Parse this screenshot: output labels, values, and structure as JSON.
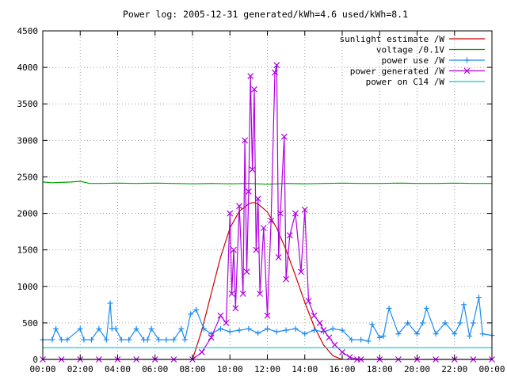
{
  "chart_data": {
    "type": "line",
    "title": "Power log: 2005-12-31 generated/kWh=4.6 used/kWh=8.1",
    "xlabel": "",
    "ylabel": "",
    "x_ticks": [
      "00:00",
      "02:00",
      "04:00",
      "06:00",
      "08:00",
      "10:00",
      "12:00",
      "14:00",
      "16:00",
      "18:00",
      "20:00",
      "22:00",
      "00:00"
    ],
    "y_ticks": [
      "0",
      "500",
      "1000",
      "1500",
      "2000",
      "2500",
      "3000",
      "3500",
      "4000",
      "4500"
    ],
    "xlim_hours": [
      0,
      24
    ],
    "ylim": [
      0,
      4500
    ],
    "grid": true,
    "legend_position": "top-right",
    "series": [
      {
        "name": "sunlight estimate /W",
        "color": "#cc0000",
        "marker": "none",
        "x": [
          8.0,
          8.5,
          9.0,
          9.5,
          10.0,
          10.5,
          11.0,
          11.25,
          11.5,
          12.0,
          12.5,
          13.0,
          13.5,
          14.0,
          14.5,
          15.0,
          15.5,
          16.0
        ],
        "y": [
          0,
          400,
          900,
          1400,
          1800,
          2030,
          2130,
          2150,
          2130,
          2020,
          1800,
          1500,
          1150,
          780,
          450,
          200,
          50,
          0
        ]
      },
      {
        "name": "voltage /0.1V",
        "color": "#00a000",
        "marker": "none",
        "x": [
          0.0,
          0.5,
          1.0,
          1.5,
          2.0,
          2.5,
          3.0,
          4.0,
          5.0,
          6.0,
          7.0,
          8.0,
          9.0,
          10.0,
          11.0,
          12.0,
          13.0,
          14.0,
          15.0,
          16.0,
          17.0,
          18.0,
          19.0,
          20.0,
          21.0,
          22.0,
          23.0,
          24.0
        ],
        "y": [
          2430,
          2420,
          2425,
          2430,
          2440,
          2410,
          2410,
          2415,
          2410,
          2415,
          2410,
          2405,
          2410,
          2405,
          2410,
          2400,
          2410,
          2405,
          2410,
          2415,
          2410,
          2410,
          2415,
          2410,
          2410,
          2415,
          2410,
          2410
        ]
      },
      {
        "name": "power use /W",
        "color": "#1e8cf0",
        "marker": "plus",
        "x": [
          0.0,
          0.5,
          0.7,
          1.0,
          1.3,
          2.0,
          2.2,
          2.6,
          3.0,
          3.4,
          3.6,
          3.7,
          3.9,
          4.2,
          4.6,
          5.0,
          5.4,
          5.6,
          5.8,
          6.2,
          6.6,
          7.0,
          7.4,
          7.6,
          7.9,
          8.2,
          8.6,
          9.0,
          9.5,
          10.0,
          10.5,
          11.0,
          11.5,
          12.0,
          12.5,
          13.0,
          13.5,
          14.0,
          14.5,
          15.0,
          15.5,
          16.0,
          16.5,
          17.0,
          17.4,
          17.6,
          18.0,
          18.2,
          18.5,
          19.0,
          19.5,
          20.0,
          20.3,
          20.5,
          21.0,
          21.5,
          22.0,
          22.3,
          22.5,
          22.8,
          23.0,
          23.3,
          23.5,
          24.0
        ],
        "y": [
          270,
          270,
          420,
          270,
          270,
          420,
          270,
          270,
          420,
          270,
          770,
          420,
          420,
          270,
          270,
          420,
          270,
          270,
          420,
          270,
          270,
          270,
          420,
          270,
          620,
          680,
          420,
          350,
          420,
          380,
          400,
          420,
          360,
          420,
          380,
          400,
          420,
          350,
          400,
          380,
          420,
          400,
          270,
          270,
          250,
          480,
          300,
          320,
          700,
          350,
          500,
          350,
          500,
          700,
          350,
          500,
          350,
          500,
          750,
          320,
          500,
          850,
          350,
          330
        ]
      },
      {
        "name": "power generated /W",
        "color": "#b000e0",
        "marker": "x",
        "x": [
          0.0,
          1.0,
          2.0,
          3.0,
          4.0,
          5.0,
          6.0,
          7.0,
          8.0,
          8.5,
          9.0,
          9.5,
          9.8,
          10.0,
          10.1,
          10.2,
          10.3,
          10.5,
          10.7,
          10.8,
          10.9,
          11.0,
          11.1,
          11.2,
          11.3,
          11.4,
          11.5,
          11.6,
          11.8,
          12.0,
          12.2,
          12.4,
          12.5,
          12.6,
          12.7,
          12.9,
          13.0,
          13.2,
          13.5,
          13.8,
          14.0,
          14.2,
          14.5,
          14.8,
          15.0,
          15.3,
          15.6,
          16.0,
          16.4,
          16.8,
          17.0,
          18.0,
          19.0,
          20.0,
          21.0,
          22.0,
          23.0,
          24.0
        ],
        "y": [
          0,
          0,
          0,
          0,
          0,
          0,
          0,
          0,
          0,
          100,
          300,
          600,
          500,
          2000,
          900,
          1500,
          700,
          2100,
          900,
          3000,
          1200,
          2300,
          3880,
          2600,
          3700,
          1500,
          2200,
          900,
          1800,
          600,
          1900,
          3930,
          4030,
          1400,
          2000,
          3050,
          1100,
          1700,
          2000,
          1200,
          2050,
          800,
          600,
          500,
          400,
          300,
          200,
          100,
          30,
          0,
          0,
          0,
          0,
          0,
          0,
          0,
          0,
          0
        ]
      },
      {
        "name": "power on C14 /W",
        "color": "#00c8d2",
        "marker": "none",
        "x": [
          0.0,
          24.0
        ],
        "y": [
          160,
          160
        ]
      }
    ]
  }
}
